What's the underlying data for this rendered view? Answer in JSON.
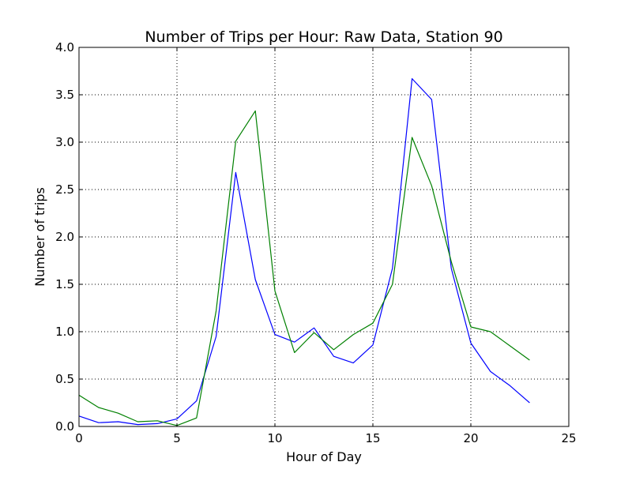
{
  "chart_data": {
    "type": "line",
    "title": "Number of Trips per Hour: Raw Data, Station 90",
    "xlabel": "Hour of Day",
    "ylabel": "Number of trips",
    "xlim": [
      0,
      25
    ],
    "ylim": [
      0,
      4.0
    ],
    "xticks": [
      0,
      5,
      10,
      15,
      20,
      25
    ],
    "yticks": [
      0.0,
      0.5,
      1.0,
      1.5,
      2.0,
      2.5,
      3.0,
      3.5,
      4.0
    ],
    "xtick_labels": [
      "0",
      "5",
      "10",
      "15",
      "20",
      "25"
    ],
    "ytick_labels": [
      "0.0",
      "0.5",
      "1.0",
      "1.5",
      "2.0",
      "2.5",
      "3.0",
      "3.5",
      "4.0"
    ],
    "grid": true,
    "x": [
      0,
      1,
      2,
      3,
      4,
      5,
      6,
      7,
      8,
      9,
      10,
      11,
      12,
      13,
      14,
      15,
      16,
      17,
      18,
      19,
      20,
      21,
      22,
      23
    ],
    "series": [
      {
        "color": "#0000ff",
        "values": [
          0.11,
          0.04,
          0.05,
          0.02,
          0.03,
          0.08,
          0.27,
          0.95,
          2.68,
          1.55,
          0.97,
          0.89,
          1.04,
          0.74,
          0.67,
          0.86,
          1.67,
          3.67,
          3.45,
          1.67,
          0.88,
          0.58,
          0.43,
          0.25
        ]
      },
      {
        "color": "#008000",
        "values": [
          0.33,
          0.2,
          0.14,
          0.05,
          0.06,
          0.01,
          0.09,
          1.22,
          3.01,
          3.33,
          1.43,
          0.78,
          0.99,
          0.81,
          0.97,
          1.09,
          1.5,
          3.05,
          2.54,
          1.74,
          1.05,
          1.0,
          0.85,
          0.7
        ]
      }
    ]
  }
}
